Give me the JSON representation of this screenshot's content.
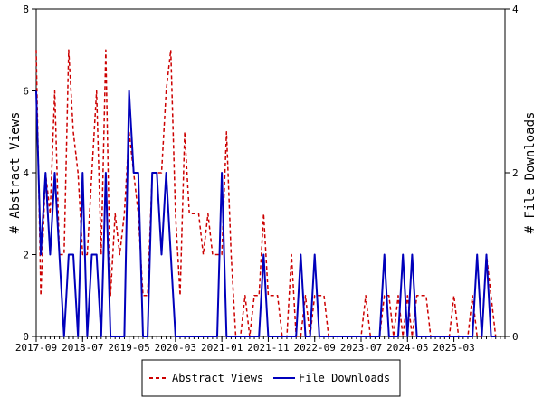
{
  "chart_data": {
    "type": "line",
    "ylabel_left": "# Abstract Views",
    "ylabel_right": "# File Downloads",
    "ylim_left": [
      0,
      8
    ],
    "ylim_right": [
      0,
      4
    ],
    "yticks_left": [
      "0",
      "2",
      "4",
      "6",
      "8"
    ],
    "yticks_right": [
      "0",
      "2",
      "4"
    ],
    "x_tick_labels": [
      "2017-09",
      "2018-07",
      "2019-05",
      "2020-03",
      "2021-01",
      "2021-11",
      "2022-09",
      "2023-07",
      "2024-05",
      "2025-03"
    ],
    "x_range": [
      "2017-09",
      "2026-02"
    ],
    "grid": false,
    "legend_position": "bottom",
    "colors": {
      "abstract_views": "#cc0000",
      "file_downloads": "#0000bb"
    },
    "series": [
      {
        "name": "Abstract Views",
        "axis": "left",
        "style": "dashed",
        "points": [
          [
            "2017-09",
            7
          ],
          [
            "2017-10",
            1
          ],
          [
            "2017-11",
            4
          ],
          [
            "2017-12",
            3
          ],
          [
            "2018-01",
            6
          ],
          [
            "2018-02",
            2
          ],
          [
            "2018-03",
            2
          ],
          [
            "2018-04",
            7
          ],
          [
            "2018-05",
            5
          ],
          [
            "2018-06",
            4
          ],
          [
            "2018-07",
            2
          ],
          [
            "2018-08",
            2
          ],
          [
            "2018-09",
            4
          ],
          [
            "2018-10",
            6
          ],
          [
            "2018-11",
            2
          ],
          [
            "2018-12",
            7
          ],
          [
            "2019-01",
            1
          ],
          [
            "2019-02",
            3
          ],
          [
            "2019-03",
            2
          ],
          [
            "2019-04",
            3
          ],
          [
            "2019-05",
            5
          ],
          [
            "2019-06",
            4
          ],
          [
            "2019-07",
            3
          ],
          [
            "2019-08",
            1
          ],
          [
            "2019-09",
            1
          ],
          [
            "2019-10",
            4
          ],
          [
            "2019-11",
            4
          ],
          [
            "2019-12",
            4
          ],
          [
            "2020-01",
            6
          ],
          [
            "2020-02",
            7
          ],
          [
            "2020-03",
            3
          ],
          [
            "2020-04",
            1
          ],
          [
            "2020-05",
            5
          ],
          [
            "2020-06",
            3
          ],
          [
            "2020-07",
            3
          ],
          [
            "2020-08",
            3
          ],
          [
            "2020-09",
            2
          ],
          [
            "2020-10",
            3
          ],
          [
            "2020-11",
            2
          ],
          [
            "2020-12",
            2
          ],
          [
            "2021-01",
            2
          ],
          [
            "2021-02",
            5
          ],
          [
            "2021-03",
            2
          ],
          [
            "2021-04",
            0
          ],
          [
            "2021-05",
            0
          ],
          [
            "2021-06",
            1
          ],
          [
            "2021-07",
            0
          ],
          [
            "2021-08",
            1
          ],
          [
            "2021-09",
            1
          ],
          [
            "2021-10",
            3
          ],
          [
            "2021-11",
            1
          ],
          [
            "2021-12",
            1
          ],
          [
            "2022-01",
            1
          ],
          [
            "2022-02",
            0
          ],
          [
            "2022-03",
            0
          ],
          [
            "2022-04",
            2
          ],
          [
            "2022-05",
            0
          ],
          [
            "2022-06",
            0
          ],
          [
            "2022-07",
            1
          ],
          [
            "2022-08",
            0
          ],
          [
            "2022-09",
            1
          ],
          [
            "2022-10",
            1
          ],
          [
            "2022-11",
            1
          ],
          [
            "2022-12",
            0
          ],
          [
            "2023-01",
            0
          ],
          [
            "2023-02",
            0
          ],
          [
            "2023-03",
            0
          ],
          [
            "2023-04",
            0
          ],
          [
            "2023-05",
            0
          ],
          [
            "2023-06",
            0
          ],
          [
            "2023-07",
            0
          ],
          [
            "2023-08",
            1
          ],
          [
            "2023-09",
            0
          ],
          [
            "2023-10",
            0
          ],
          [
            "2023-11",
            0
          ],
          [
            "2023-12",
            1
          ],
          [
            "2024-01",
            1
          ],
          [
            "2024-02",
            0
          ],
          [
            "2024-03",
            1
          ],
          [
            "2024-04",
            0
          ],
          [
            "2024-05",
            1
          ],
          [
            "2024-06",
            0
          ],
          [
            "2024-07",
            1
          ],
          [
            "2024-08",
            1
          ],
          [
            "2024-09",
            1
          ],
          [
            "2024-10",
            0
          ],
          [
            "2024-11",
            0
          ],
          [
            "2024-12",
            0
          ],
          [
            "2025-01",
            0
          ],
          [
            "2025-02",
            0
          ],
          [
            "2025-03",
            1
          ],
          [
            "2025-04",
            0
          ],
          [
            "2025-05",
            0
          ],
          [
            "2025-06",
            0
          ],
          [
            "2025-07",
            1
          ],
          [
            "2025-08",
            0
          ],
          [
            "2025-09",
            0
          ],
          [
            "2025-10",
            2
          ],
          [
            "2025-11",
            1
          ],
          [
            "2025-12",
            0
          ]
        ]
      },
      {
        "name": "File Downloads",
        "axis": "right",
        "style": "solid",
        "points": [
          [
            "2017-09",
            3
          ],
          [
            "2017-10",
            1
          ],
          [
            "2017-11",
            2
          ],
          [
            "2017-12",
            1
          ],
          [
            "2018-01",
            2
          ],
          [
            "2018-02",
            1
          ],
          [
            "2018-03",
            0
          ],
          [
            "2018-04",
            1
          ],
          [
            "2018-05",
            1
          ],
          [
            "2018-06",
            0
          ],
          [
            "2018-07",
            2
          ],
          [
            "2018-08",
            0
          ],
          [
            "2018-09",
            1
          ],
          [
            "2018-10",
            1
          ],
          [
            "2018-11",
            0
          ],
          [
            "2018-12",
            2
          ],
          [
            "2019-01",
            0
          ],
          [
            "2019-02",
            0
          ],
          [
            "2019-03",
            0
          ],
          [
            "2019-04",
            0
          ],
          [
            "2019-05",
            3
          ],
          [
            "2019-06",
            2
          ],
          [
            "2019-07",
            2
          ],
          [
            "2019-08",
            0
          ],
          [
            "2019-09",
            0
          ],
          [
            "2019-10",
            2
          ],
          [
            "2019-11",
            2
          ],
          [
            "2019-12",
            1
          ],
          [
            "2020-01",
            2
          ],
          [
            "2020-02",
            1
          ],
          [
            "2020-03",
            0
          ],
          [
            "2020-04",
            0
          ],
          [
            "2020-05",
            0
          ],
          [
            "2020-06",
            0
          ],
          [
            "2020-07",
            0
          ],
          [
            "2020-08",
            0
          ],
          [
            "2020-09",
            0
          ],
          [
            "2020-10",
            0
          ],
          [
            "2020-11",
            0
          ],
          [
            "2020-12",
            0
          ],
          [
            "2021-01",
            2
          ],
          [
            "2021-02",
            0
          ],
          [
            "2021-03",
            0
          ],
          [
            "2021-04",
            0
          ],
          [
            "2021-05",
            0
          ],
          [
            "2021-06",
            0
          ],
          [
            "2021-07",
            0
          ],
          [
            "2021-08",
            0
          ],
          [
            "2021-09",
            0
          ],
          [
            "2021-10",
            1
          ],
          [
            "2021-11",
            0
          ],
          [
            "2021-12",
            0
          ],
          [
            "2022-01",
            0
          ],
          [
            "2022-02",
            0
          ],
          [
            "2022-03",
            0
          ],
          [
            "2022-04",
            0
          ],
          [
            "2022-05",
            0
          ],
          [
            "2022-06",
            1
          ],
          [
            "2022-07",
            0
          ],
          [
            "2022-08",
            0
          ],
          [
            "2022-09",
            1
          ],
          [
            "2022-10",
            0
          ],
          [
            "2022-11",
            0
          ],
          [
            "2022-12",
            0
          ],
          [
            "2023-01",
            0
          ],
          [
            "2023-02",
            0
          ],
          [
            "2023-03",
            0
          ],
          [
            "2023-04",
            0
          ],
          [
            "2023-05",
            0
          ],
          [
            "2023-06",
            0
          ],
          [
            "2023-07",
            0
          ],
          [
            "2023-08",
            0
          ],
          [
            "2023-09",
            0
          ],
          [
            "2023-10",
            0
          ],
          [
            "2023-11",
            0
          ],
          [
            "2023-12",
            1
          ],
          [
            "2024-01",
            0
          ],
          [
            "2024-02",
            0
          ],
          [
            "2024-03",
            0
          ],
          [
            "2024-04",
            1
          ],
          [
            "2024-05",
            0
          ],
          [
            "2024-06",
            1
          ],
          [
            "2024-07",
            0
          ],
          [
            "2024-08",
            0
          ],
          [
            "2024-09",
            0
          ],
          [
            "2024-10",
            0
          ],
          [
            "2024-11",
            0
          ],
          [
            "2024-12",
            0
          ],
          [
            "2025-01",
            0
          ],
          [
            "2025-02",
            0
          ],
          [
            "2025-03",
            0
          ],
          [
            "2025-04",
            0
          ],
          [
            "2025-05",
            0
          ],
          [
            "2025-06",
            0
          ],
          [
            "2025-07",
            0
          ],
          [
            "2025-08",
            1
          ],
          [
            "2025-09",
            0
          ],
          [
            "2025-10",
            1
          ],
          [
            "2025-11",
            0
          ],
          [
            "2025-12",
            0
          ]
        ]
      }
    ]
  }
}
